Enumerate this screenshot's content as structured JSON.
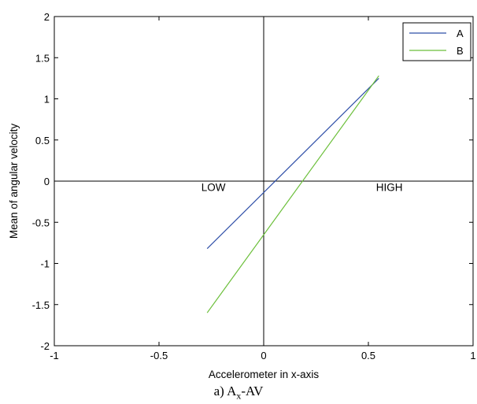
{
  "chart_data": {
    "type": "line",
    "xlabel": "Accelerometer in x-axis",
    "ylabel": "Mean of angular velocity",
    "xlim": [
      -1,
      1
    ],
    "ylim": [
      -2,
      2
    ],
    "xticks": [
      -1,
      -0.5,
      0,
      0.5,
      1
    ],
    "xtick_labels": [
      "-1",
      "-0.5",
      "0",
      "0.5",
      "1"
    ],
    "yticks": [
      -2,
      -1.5,
      -1,
      -0.5,
      0,
      0.5,
      1,
      1.5,
      2
    ],
    "ytick_labels": [
      "-2",
      "-1.5",
      "-1",
      "-0.5",
      "0",
      "0.5",
      "1",
      "1.5",
      "2"
    ],
    "grid": false,
    "legend_position": "top-right",
    "series": [
      {
        "name": "A",
        "color": "#2f4fa8",
        "x": [
          -0.27,
          0.55
        ],
        "y": [
          -0.82,
          1.25
        ]
      },
      {
        "name": "B",
        "color": "#6bbf3a",
        "x": [
          -0.27,
          0.55
        ],
        "y": [
          -1.6,
          1.28
        ]
      }
    ],
    "annotations": [
      {
        "text": "LOW",
        "x": -0.24,
        "y": -0.12
      },
      {
        "text": "HIGH",
        "x": 0.6,
        "y": -0.12
      }
    ],
    "reference_lines": {
      "x": 0,
      "y": 0
    }
  },
  "caption": {
    "prefix": "a) A",
    "subscript": "x",
    "suffix": "-AV"
  }
}
